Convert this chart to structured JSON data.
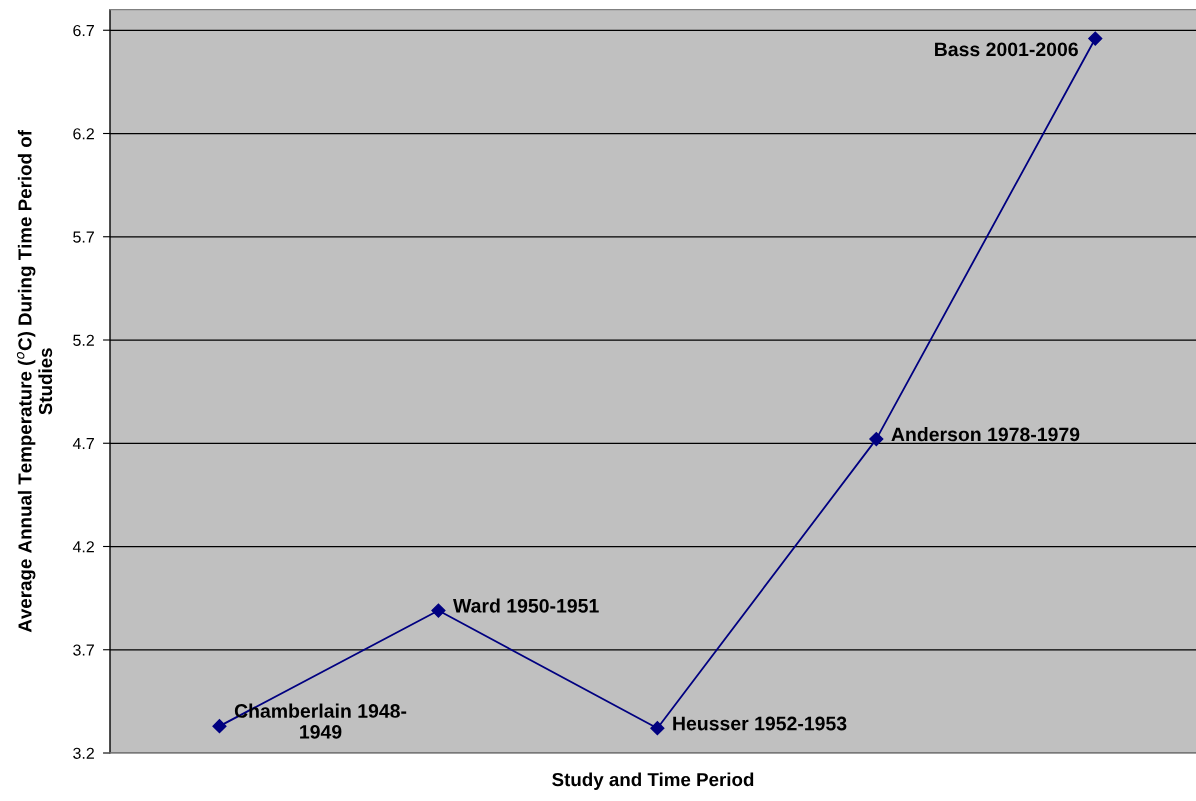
{
  "chart_data": {
    "type": "line",
    "xlabel": "Study and Time Period",
    "ylabel": "Average Annual Temperature ($^{o}$C) During Time Period of\nStudies",
    "categories": [
      null,
      null,
      null,
      null,
      null
    ],
    "series": [
      {
        "color": "#000080",
        "values": [
          3.33,
          3.89,
          3.32,
          4.72,
          6.66
        ],
        "value_labels": [
          "Chamberlain 1948-\n1949",
          "Ward 1950-1951",
          "Heusser 1952-1953",
          "Anderson 1978-1979",
          "Bass 2001-2006"
        ]
      }
    ],
    "ylim": [
      3.2,
      6.8
    ],
    "yticks": [
      3.2,
      3.7,
      4.2,
      4.7,
      5.2,
      5.7,
      6.2,
      6.7
    ],
    "grid": "y",
    "marker": "diamond",
    "line_style": "solid",
    "tick_labels": "y"
  }
}
